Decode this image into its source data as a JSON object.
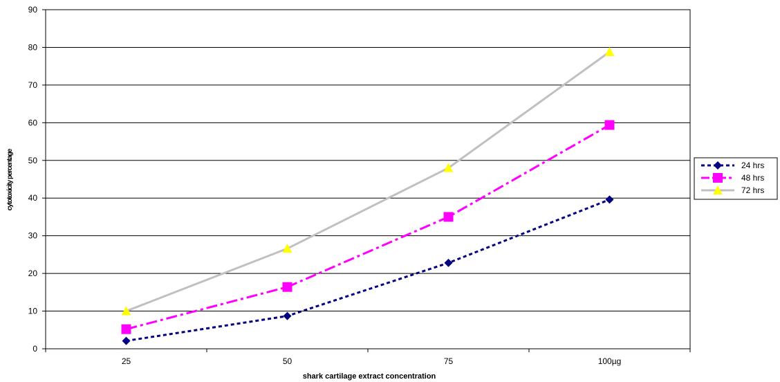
{
  "chart_data": {
    "type": "line",
    "xlabel": "shark cartilage extract concentration",
    "ylabel": "cytotoxicity percentage",
    "categories": [
      "25",
      "50",
      "75",
      "100µg"
    ],
    "ylim": [
      0,
      90
    ],
    "ystep": 10,
    "grid": true,
    "legend_position": "right",
    "series": [
      {
        "name": "24 hrs",
        "values": [
          2.1,
          8.7,
          22.8,
          39.6
        ],
        "color": "#000080",
        "marker": "diamond",
        "dash": "dashed"
      },
      {
        "name": "48 hrs",
        "values": [
          5.2,
          16.4,
          35.0,
          59.4
        ],
        "color": "#ff00ff",
        "marker": "square",
        "dash": "dash-dot"
      },
      {
        "name": "72 hrs",
        "values": [
          10.0,
          26.6,
          48.0,
          78.8
        ],
        "color": "#c0c0c0",
        "marker": "triangle",
        "dash": "solid",
        "marker_color": "#ffff00"
      }
    ]
  }
}
